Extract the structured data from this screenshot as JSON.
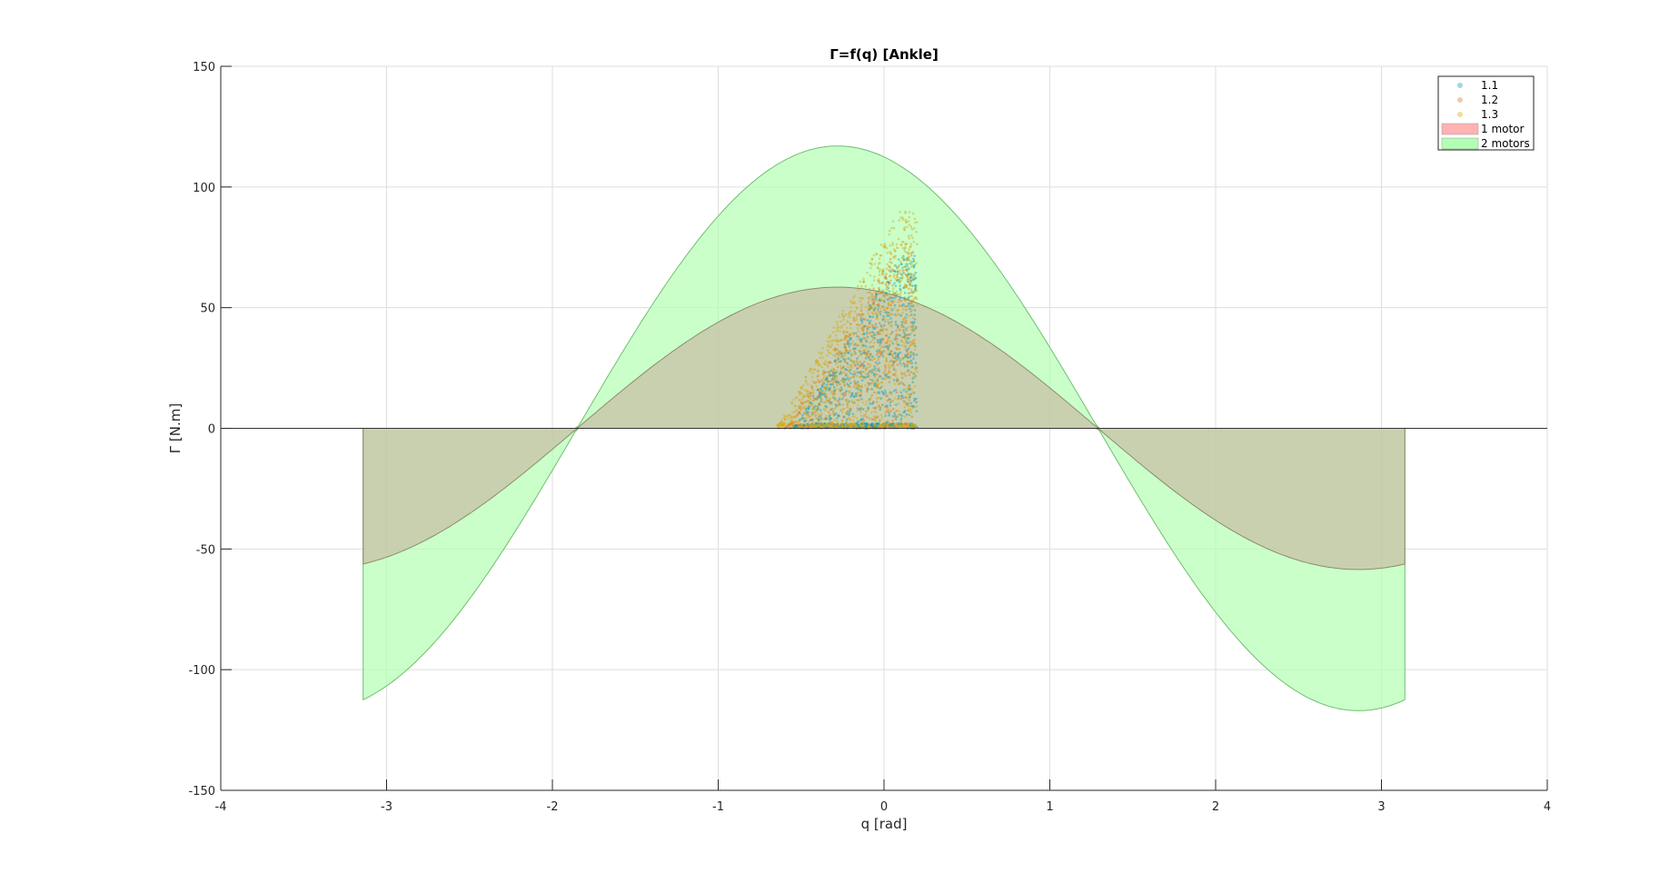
{
  "chart_data": {
    "type": "scatter",
    "title": "Γ=f(q) [Ankle]",
    "xlabel": "q [rad]",
    "ylabel": "Γ [N.m]",
    "xlim": [
      -4,
      4
    ],
    "ylim": [
      -150,
      150
    ],
    "x_ticks": [
      -4,
      -3,
      -2,
      -1,
      0,
      1,
      2,
      3,
      4
    ],
    "y_ticks": [
      -150,
      -100,
      -50,
      0,
      50,
      100,
      150
    ],
    "grid": true,
    "legend_position": "top-right",
    "colors": {
      "s1": "#0aa0c0",
      "s2": "#d97a2a",
      "s3": "#d4a914",
      "one_motor": "#ffb3b3",
      "two_motors": "#b3ffb3"
    },
    "envelopes": [
      {
        "name": "1 motor",
        "amplitude": 58.5,
        "q_peak": -0.28,
        "q_range": [
          -3.1416,
          3.1416
        ],
        "description_of_shape": "positive region = max(0, A*cos(q - q_peak)) else min(0, A*cos(q - q_peak))"
      },
      {
        "name": "2 motors",
        "amplitude": 117,
        "q_peak": -0.28,
        "q_range": [
          -3.1416,
          3.1416
        ]
      }
    ],
    "series": [
      {
        "name": "1.1",
        "q_range": [
          -0.55,
          0.2
        ],
        "torque_range": [
          0,
          72
        ]
      },
      {
        "name": "1.2",
        "q_range": [
          -0.6,
          0.18
        ],
        "torque_range": [
          0,
          75
        ]
      },
      {
        "name": "1.3",
        "q_range": [
          -0.65,
          0.2
        ],
        "torque_range": [
          0,
          90
        ]
      }
    ]
  },
  "legend": {
    "items": [
      {
        "label": "1.1",
        "kind": "marker",
        "color": "#0aa0c0"
      },
      {
        "label": "1.2",
        "kind": "marker",
        "color": "#d97a2a"
      },
      {
        "label": "1.3",
        "kind": "marker",
        "color": "#d4a914"
      },
      {
        "label": "1 motor",
        "kind": "patch",
        "color": "#ffb3b3"
      },
      {
        "label": "2 motors",
        "kind": "patch",
        "color": "#b3ffb3"
      }
    ]
  }
}
